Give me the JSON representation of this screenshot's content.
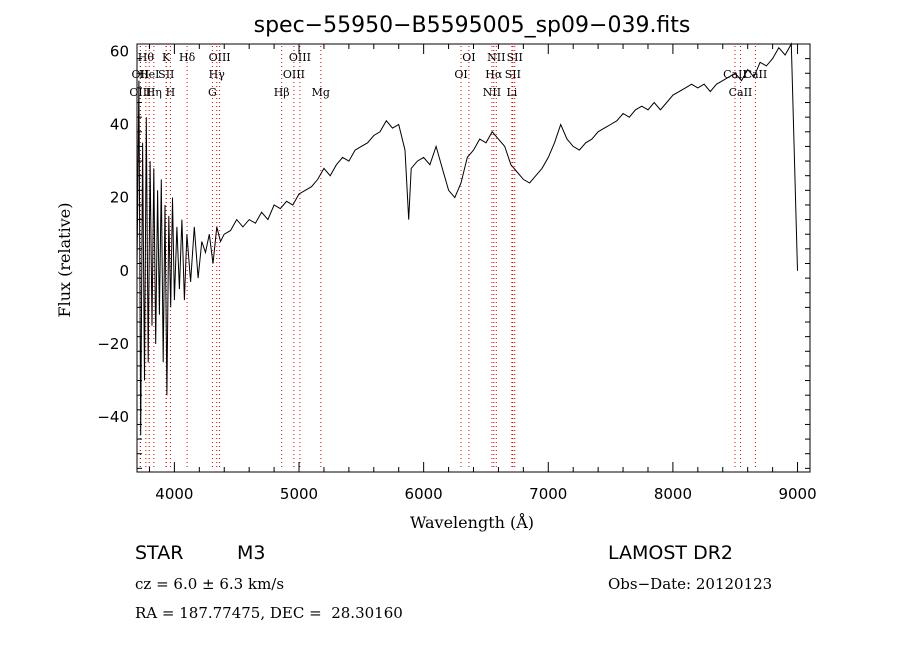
{
  "chart_data": {
    "type": "line",
    "title": "spec−55950−B5595005_sp09−039.fits",
    "xlabel": "Wavelength (Å)",
    "ylabel": "Flux (relative)",
    "xlim": [
      3700,
      9100
    ],
    "ylim": [
      -55,
      62
    ],
    "x_ticks": [
      4000,
      5000,
      6000,
      7000,
      8000,
      9000
    ],
    "y_ticks": [
      -40,
      -20,
      0,
      20,
      40,
      60
    ],
    "grid": false,
    "series": [
      {
        "x": [
          3700,
          3715,
          3730,
          3745,
          3760,
          3775,
          3790,
          3805,
          3820,
          3835,
          3850,
          3865,
          3880,
          3895,
          3910,
          3925,
          3940,
          3955,
          3970,
          3985,
          4000,
          4020,
          4040,
          4060,
          4080,
          4100,
          4130,
          4160,
          4190,
          4220,
          4250,
          4280,
          4310,
          4340,
          4370,
          4400,
          4450,
          4500,
          4550,
          4600,
          4650,
          4700,
          4750,
          4800,
          4850,
          4900,
          4950,
          5000,
          5050,
          5100,
          5150,
          5200,
          5250,
          5300,
          5350,
          5400,
          5450,
          5500,
          5550,
          5600,
          5650,
          5700,
          5750,
          5800,
          5850,
          5880,
          5900,
          5950,
          6000,
          6050,
          6100,
          6150,
          6200,
          6250,
          6300,
          6350,
          6400,
          6450,
          6500,
          6550,
          6600,
          6650,
          6700,
          6750,
          6800,
          6850,
          6900,
          6950,
          7000,
          7050,
          7100,
          7150,
          7200,
          7250,
          7300,
          7350,
          7400,
          7450,
          7500,
          7550,
          7600,
          7650,
          7700,
          7750,
          7800,
          7850,
          7900,
          7950,
          8000,
          8050,
          8100,
          8150,
          8200,
          8250,
          8300,
          8350,
          8400,
          8450,
          8500,
          8550,
          8600,
          8650,
          8700,
          8750,
          8800,
          8850,
          8900,
          8950,
          9000
        ],
        "values": [
          0,
          52,
          -45,
          35,
          -30,
          42,
          -25,
          30,
          -15,
          28,
          -20,
          22,
          -12,
          25,
          -25,
          18,
          -34,
          15,
          -10,
          20,
          -8,
          12,
          -5,
          14,
          -8,
          10,
          -3,
          12,
          -2,
          8,
          5,
          10,
          2,
          12,
          8,
          10,
          11,
          14,
          12,
          14,
          13,
          16,
          14,
          18,
          17,
          19,
          18,
          21,
          22,
          23,
          25,
          28,
          26,
          29,
          31,
          30,
          33,
          34,
          35,
          37,
          38,
          41,
          39,
          40,
          33,
          14,
          28,
          30,
          31,
          29,
          34,
          28,
          22,
          20,
          24,
          31,
          33,
          36,
          35,
          38,
          36,
          34,
          29,
          27,
          25,
          24,
          26,
          28,
          31,
          35,
          40,
          36,
          34,
          33,
          35,
          36,
          38,
          39,
          40,
          41,
          43,
          42,
          44,
          45,
          44,
          46,
          44,
          46,
          48,
          49,
          50,
          51,
          50,
          51,
          49,
          51,
          52,
          53,
          54,
          52,
          55,
          53,
          57,
          56,
          58,
          61,
          59,
          62,
          0
        ]
      }
    ],
    "spectral_lines": [
      {
        "x": 3727,
        "label": "OII",
        "row": 1
      },
      {
        "x": 3727,
        "label": "OIII",
        "row": 2
      },
      {
        "x": 3771,
        "label": "Hθ",
        "row": 0
      },
      {
        "x": 3798,
        "label": "HeI",
        "row": 1
      },
      {
        "x": 3835,
        "label": "Hη",
        "row": 2
      },
      {
        "x": 3934,
        "label": "K",
        "row": 0
      },
      {
        "x": 3935,
        "label": "SII",
        "row": 1
      },
      {
        "x": 3968,
        "label": "H",
        "row": 2
      },
      {
        "x": 4102,
        "label": "Hδ",
        "row": 0
      },
      {
        "x": 4305,
        "label": "G",
        "row": 2
      },
      {
        "x": 4340,
        "label": "Hγ",
        "row": 1
      },
      {
        "x": 4363,
        "label": "OIII",
        "row": 0
      },
      {
        "x": 4861,
        "label": "Hβ",
        "row": 2
      },
      {
        "x": 4959,
        "label": "OIII",
        "row": 1
      },
      {
        "x": 5007,
        "label": "OIII",
        "row": 0
      },
      {
        "x": 5175,
        "label": "Mg",
        "row": 2
      },
      {
        "x": 6300,
        "label": "OI",
        "row": 1
      },
      {
        "x": 6363,
        "label": "OI",
        "row": 0
      },
      {
        "x": 6548,
        "label": "NII",
        "row": 2
      },
      {
        "x": 6563,
        "label": "Hα",
        "row": 1
      },
      {
        "x": 6583,
        "label": "NII",
        "row": 0
      },
      {
        "x": 6708,
        "label": "Li",
        "row": 2
      },
      {
        "x": 6716,
        "label": "SII",
        "row": 1
      },
      {
        "x": 6731,
        "label": "SII",
        "row": 0
      },
      {
        "x": 8498,
        "label": "CaII",
        "row": 1
      },
      {
        "x": 8542,
        "label": "CaII",
        "row": 2
      },
      {
        "x": 8662,
        "label": "CaII",
        "row": 1
      }
    ],
    "line_color": "#000000",
    "marker_color": "#d40000"
  },
  "info": {
    "object_class": "STAR",
    "subclass": "M3",
    "survey": "LAMOST DR2",
    "cz": "cz = 6.0 ± 6.3 km/s",
    "obs_date": "Obs−Date: 20120123",
    "coords": "RA = 187.77475, DEC =  28.30160"
  }
}
